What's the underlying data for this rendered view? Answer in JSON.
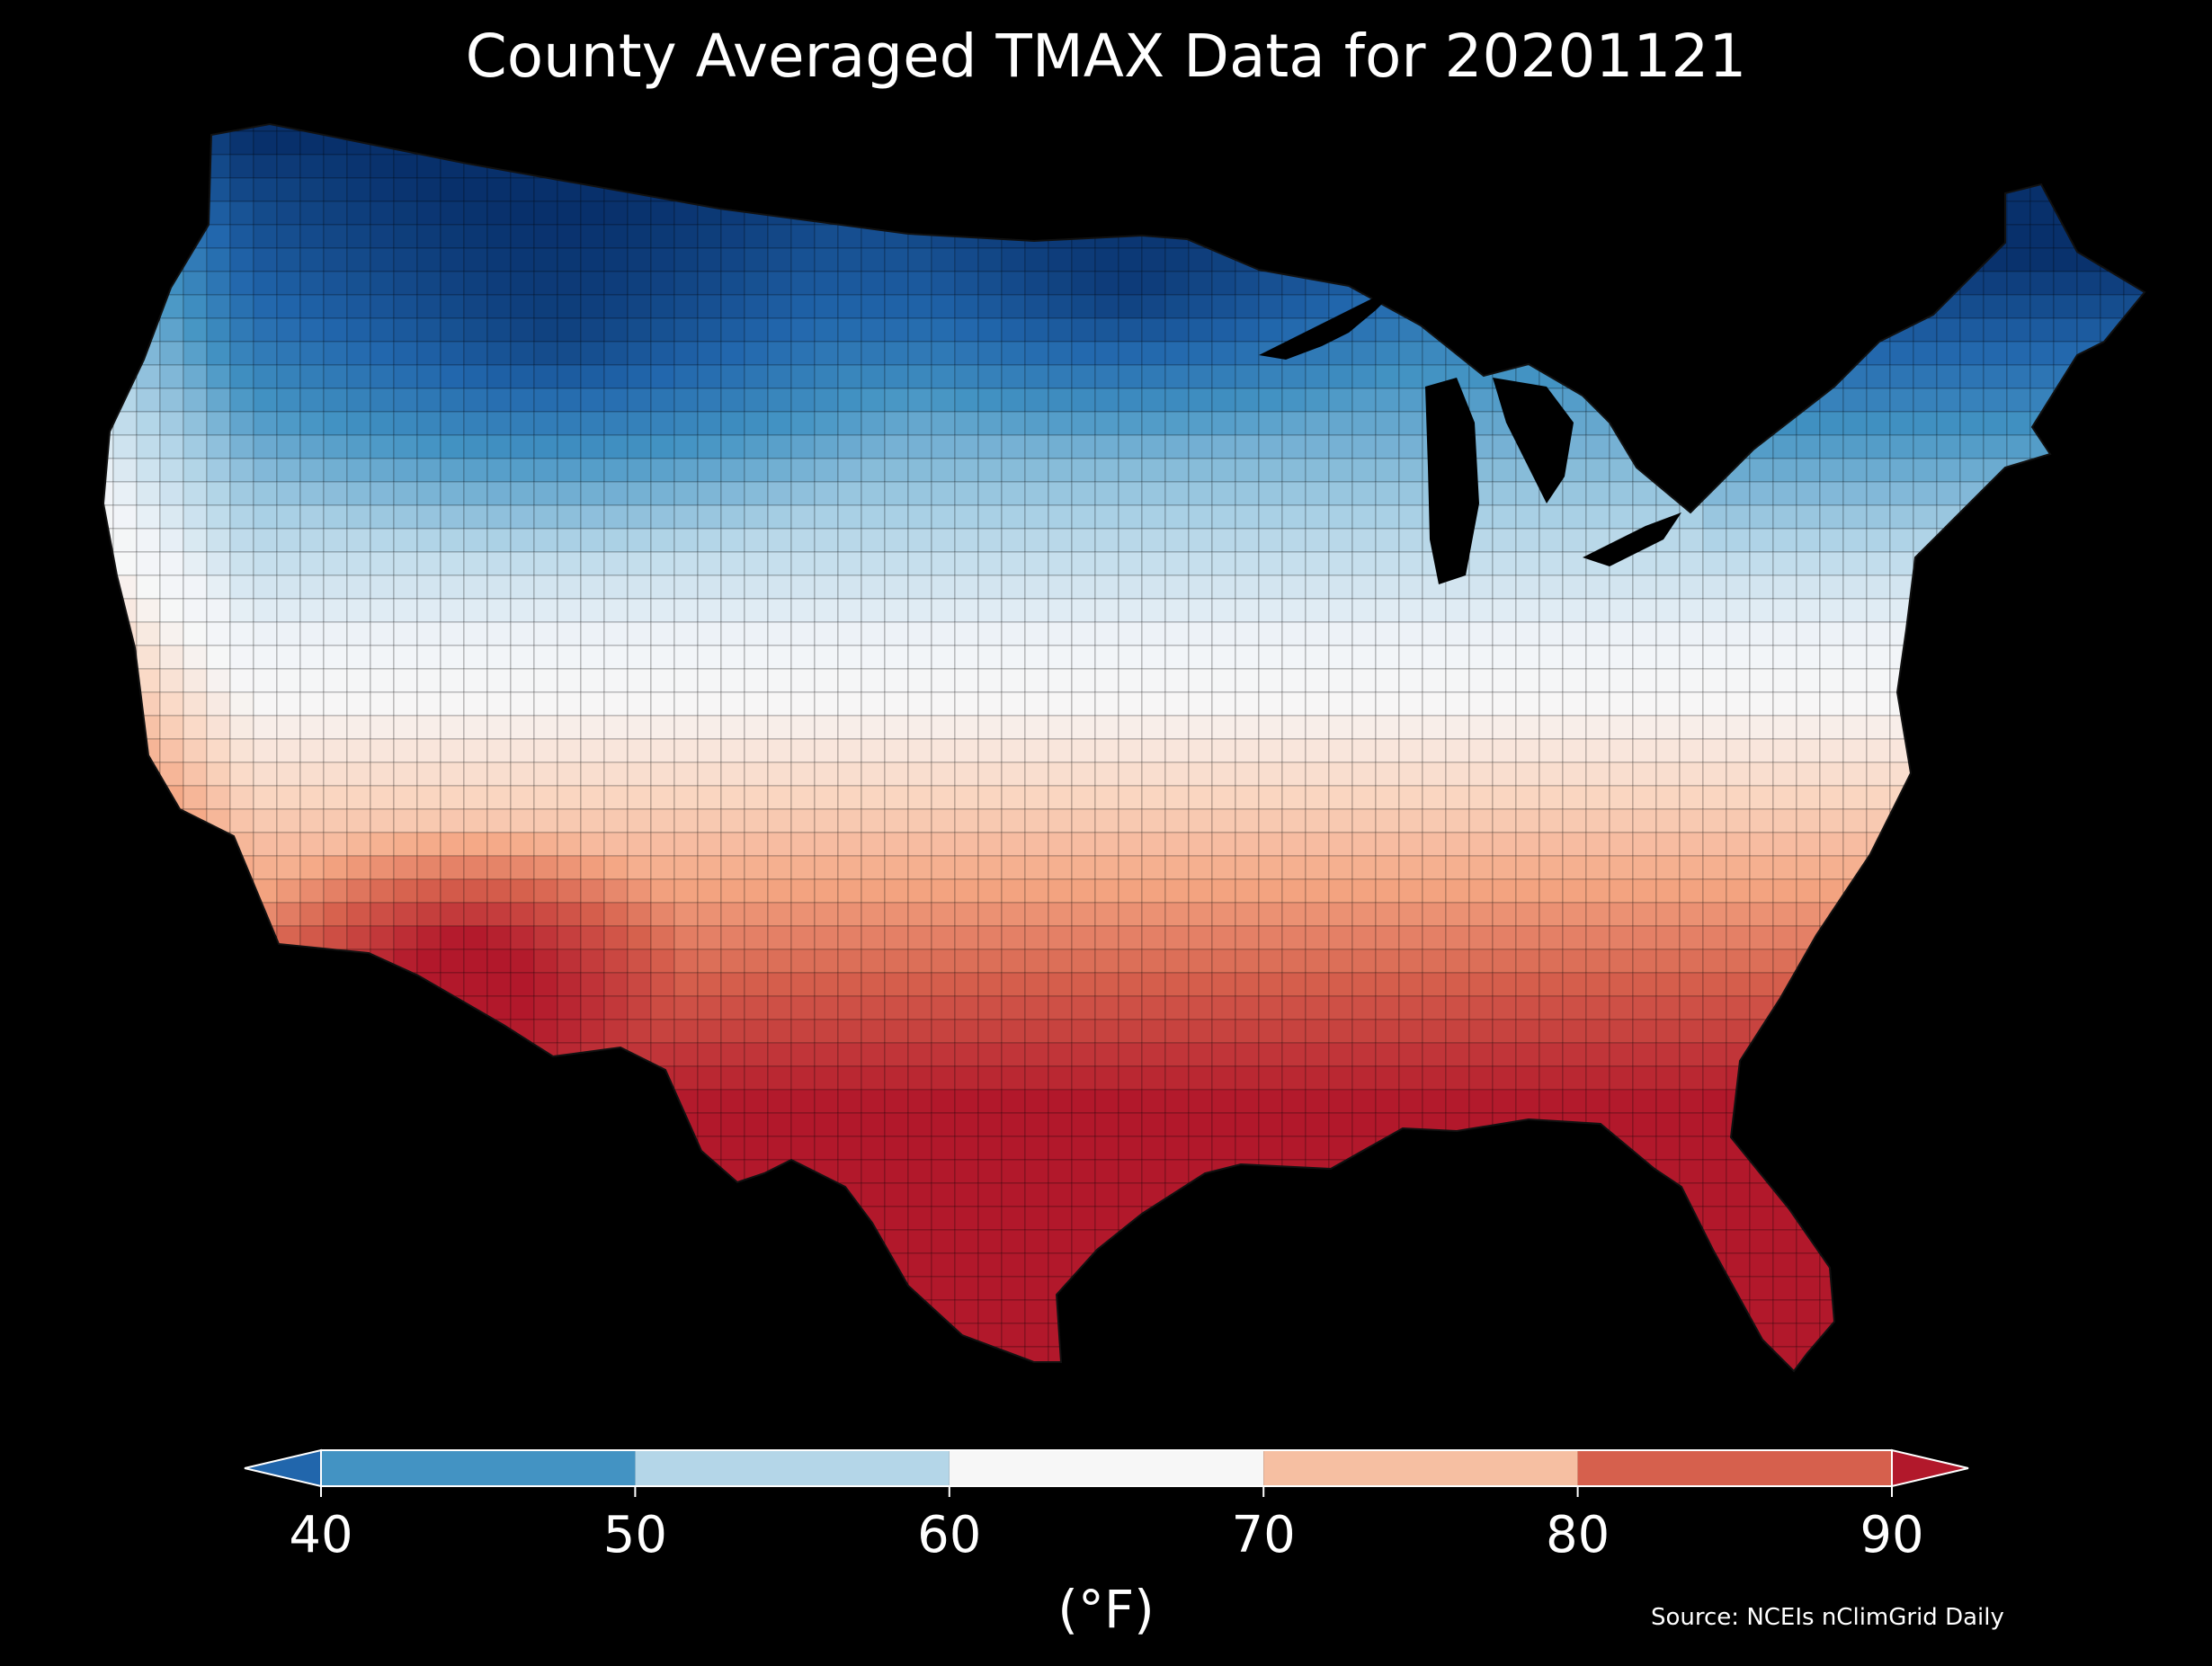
{
  "title": "County Averaged TMAX Data for 20201121",
  "colorbar": {
    "ticks": [
      "40",
      "50",
      "60",
      "70",
      "80",
      "90"
    ],
    "unit": "(°F)",
    "bins": [
      {
        "from": 40,
        "to": 50,
        "color": "#4393c3"
      },
      {
        "from": 50,
        "to": 60,
        "color": "#b4d6e8"
      },
      {
        "from": 60,
        "to": 70,
        "color": "#f7f7f7"
      },
      {
        "from": 70,
        "to": 80,
        "color": "#f6bfa2"
      },
      {
        "from": 80,
        "to": 90,
        "color": "#d6604d"
      }
    ],
    "under_color": "#2166ac",
    "over_color": "#b2182b",
    "extend": "both"
  },
  "source": "Source: NCEIs nClimGrid Daily",
  "map": {
    "variable": "TMAX",
    "date": "20201121",
    "region": "CONUS",
    "background": "#000000",
    "county_outline_color": "#000000"
  }
}
